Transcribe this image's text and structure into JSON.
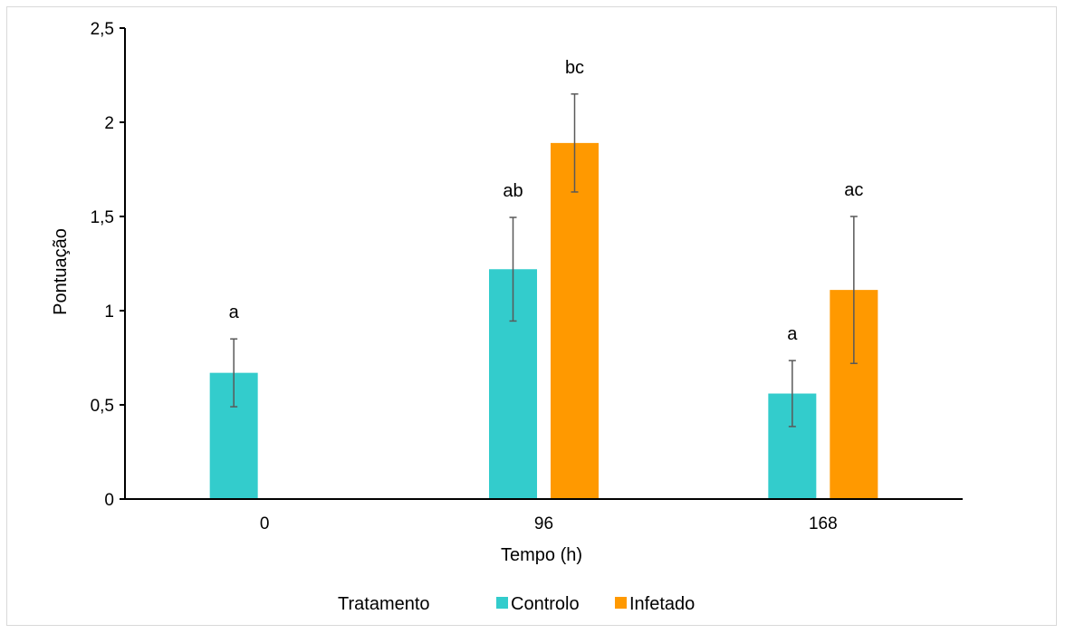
{
  "chart_data": {
    "type": "bar",
    "title": "",
    "xlabel": "Tempo (h)",
    "ylabel": "Pontuação",
    "categories": [
      "0",
      "96",
      "168"
    ],
    "ylim": [
      0,
      2.5
    ],
    "yticks": [
      "0",
      "0,5",
      "1",
      "1,5",
      "2",
      "2,5"
    ],
    "grid": false,
    "legend_position": "bottom",
    "legend_title": "Tratamento",
    "series": [
      {
        "name": "Controlo",
        "color": "#33CCCC",
        "values": [
          0.67,
          1.22,
          0.56
        ],
        "errors": [
          0.18,
          0.275,
          0.175
        ],
        "labels": [
          "a",
          "ab",
          "a"
        ]
      },
      {
        "name": "Infetado",
        "color": "#FF9900",
        "values": [
          null,
          1.89,
          1.11
        ],
        "errors": [
          null,
          0.26,
          0.39
        ],
        "labels": [
          "",
          "bc",
          "ac"
        ]
      }
    ]
  }
}
